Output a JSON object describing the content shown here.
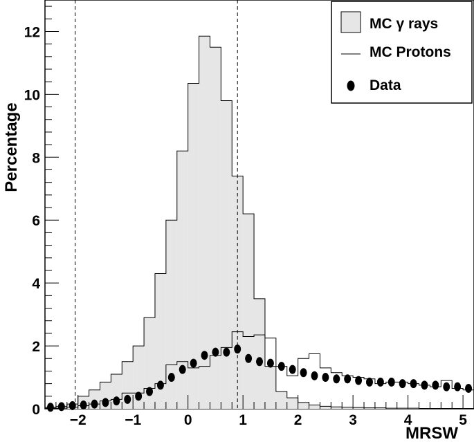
{
  "chart_data": {
    "type": "histogram",
    "xlabel": "MRSW",
    "ylabel": "Percentage",
    "xlim": [
      -2.6,
      5.2
    ],
    "ylim": [
      0,
      13
    ],
    "x_ticks": [
      "−2",
      "−1",
      "0",
      "1",
      "2",
      "3",
      "4",
      "5"
    ],
    "y_ticks": [
      "0",
      "2",
      "4",
      "6",
      "8",
      "10",
      "12"
    ],
    "cut_lines": [
      -2.05,
      0.9
    ],
    "bin_edges": [
      -2.6,
      -2.4,
      -2.2,
      -2.0,
      -1.8,
      -1.6,
      -1.4,
      -1.2,
      -1.0,
      -0.8,
      -0.6,
      -0.4,
      -0.2,
      0.0,
      0.2,
      0.4,
      0.6,
      0.8,
      1.0,
      1.2,
      1.4,
      1.6,
      1.8,
      2.0,
      2.2,
      2.4,
      2.6,
      2.8,
      3.0,
      3.2,
      3.4,
      3.6,
      3.8,
      4.0,
      4.2,
      4.4,
      4.6,
      4.8,
      5.0,
      5.2
    ],
    "series": [
      {
        "name": "MC γ rays",
        "style": "filled-histogram",
        "color": "#e6e6e6",
        "values": [
          0.05,
          0.08,
          0.15,
          0.4,
          0.6,
          0.85,
          1.1,
          1.5,
          2.0,
          2.9,
          4.3,
          6.0,
          8.2,
          10.35,
          11.85,
          11.5,
          9.8,
          7.4,
          6.2,
          3.5,
          1.35,
          0.55,
          0.35,
          0.2,
          0.12,
          0.08,
          0.06,
          0.05,
          0.04,
          0.03,
          0.03,
          0.02,
          0.02,
          0.02,
          0.01,
          0.01,
          0.01,
          0.01,
          0.01
        ]
      },
      {
        "name": "MC Protons",
        "style": "outline-histogram",
        "color": "#000000",
        "values": [
          0.02,
          0.02,
          0.05,
          0.1,
          0.15,
          0.25,
          0.3,
          0.5,
          0.5,
          0.65,
          0.8,
          1.4,
          1.5,
          1.3,
          1.35,
          1.7,
          1.95,
          2.45,
          2.3,
          2.35,
          2.25,
          1.35,
          1.05,
          1.6,
          1.75,
          1.3,
          1.15,
          1.05,
          1.0,
          0.95,
          0.8,
          0.85,
          0.85,
          0.8,
          0.75,
          0.7,
          0.9,
          0.65,
          0.6
        ]
      },
      {
        "name": "Data",
        "style": "markers",
        "color": "#000000",
        "x": [
          -2.5,
          -2.3,
          -2.1,
          -1.9,
          -1.7,
          -1.5,
          -1.3,
          -1.1,
          -0.9,
          -0.7,
          -0.5,
          -0.3,
          -0.1,
          0.1,
          0.3,
          0.5,
          0.7,
          0.9,
          1.1,
          1.3,
          1.5,
          1.7,
          1.9,
          2.1,
          2.3,
          2.5,
          2.7,
          2.9,
          3.1,
          3.3,
          3.5,
          3.7,
          3.9,
          4.1,
          4.3,
          4.5,
          4.7,
          4.9,
          5.1
        ],
        "y": [
          0.05,
          0.07,
          0.1,
          0.12,
          0.15,
          0.2,
          0.25,
          0.3,
          0.4,
          0.55,
          0.75,
          1.0,
          1.25,
          1.45,
          1.7,
          1.8,
          1.8,
          1.9,
          1.6,
          1.5,
          1.45,
          1.35,
          1.25,
          1.15,
          1.05,
          1.0,
          0.95,
          0.95,
          0.9,
          0.85,
          0.85,
          0.85,
          0.8,
          0.8,
          0.75,
          0.75,
          0.7,
          0.7,
          0.65
        ]
      }
    ],
    "legend": {
      "position": "top-right",
      "items": [
        "MC γ rays",
        "MC Protons",
        "Data"
      ]
    }
  }
}
